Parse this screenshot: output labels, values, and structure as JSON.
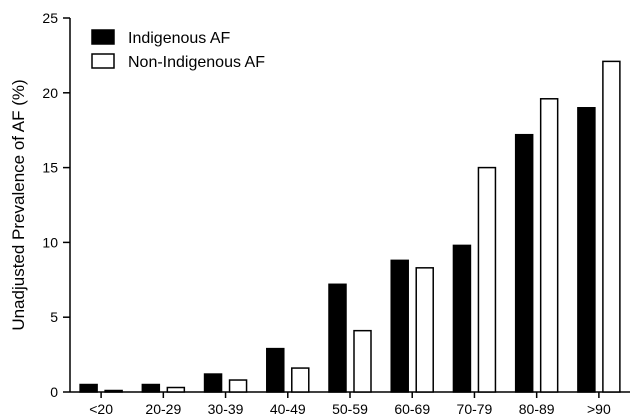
{
  "chart_data": {
    "type": "bar",
    "title": "",
    "xlabel": "",
    "ylabel": "Unadjusted Prevalence of AF (%)",
    "ylim": [
      0,
      25
    ],
    "yticks": [
      0,
      5,
      10,
      15,
      20,
      25
    ],
    "categories": [
      "<20",
      "20-29",
      "30-39",
      "40-49",
      "50-59",
      "60-69",
      "70-79",
      "80-89",
      ">90"
    ],
    "series": [
      {
        "name": "Indigenous AF",
        "color": "#000000",
        "fill": "solid",
        "values": [
          0.5,
          0.5,
          1.2,
          2.9,
          7.2,
          8.8,
          9.8,
          17.2,
          19.0
        ]
      },
      {
        "name": "Non-Indigenous AF",
        "color": "#ffffff",
        "fill": "hollow",
        "values": [
          0.1,
          0.3,
          0.8,
          1.6,
          4.1,
          8.3,
          15.0,
          19.6,
          22.1
        ]
      }
    ],
    "legend_position": "top-left",
    "grid": false
  }
}
